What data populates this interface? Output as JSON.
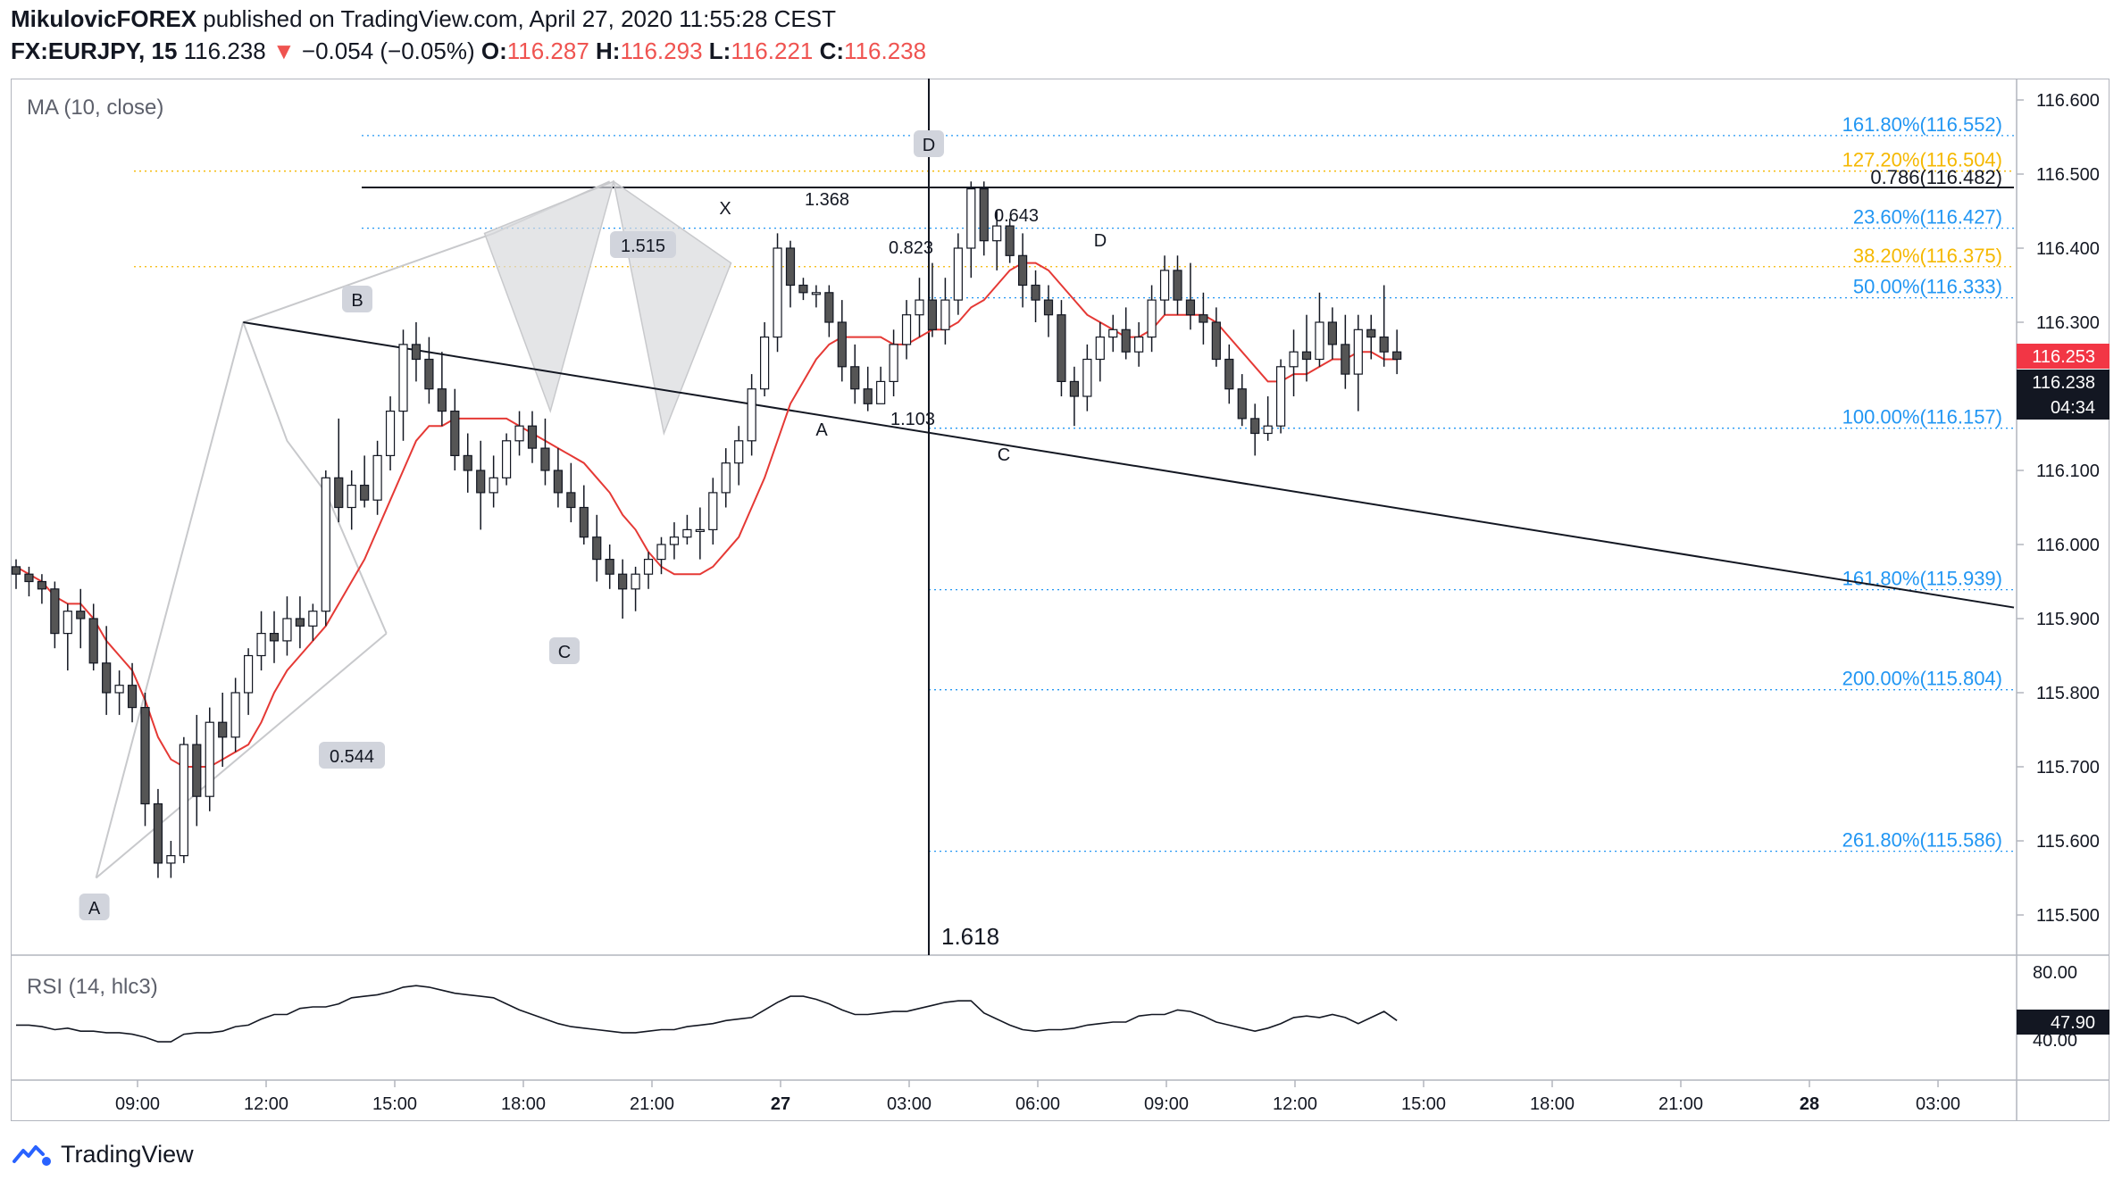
{
  "header": {
    "author": "MikulovicFOREX",
    "published": "published on TradingView.com, April 27, 2020 11:55:28 CEST",
    "symbol": "FX:EURJPY, 15",
    "last": "116.238",
    "arrow": "▼",
    "change": "−0.054 (−0.05%)",
    "o_label": "O:",
    "o_value": "116.287",
    "h_label": "H:",
    "h_value": "116.293",
    "l_label": "L:",
    "l_value": "116.221",
    "c_label": "C:",
    "c_value": "116.238"
  },
  "indicators": {
    "ma_label": "MA (10, close)",
    "rsi_label": "RSI (14, hlc3)",
    "rsi_value": "47.90",
    "rsi_levels": [
      "80.00",
      "40.00"
    ]
  },
  "footer": {
    "brand": "TradingView"
  },
  "colors": {
    "up": "#ffffff",
    "down": "#555555",
    "ma": "#e53935",
    "fib_blue": "#2196f3",
    "fib_orange": "#f5b800",
    "badge_red": "#f23645",
    "badge_black": "#131722",
    "pattern_fill": "#d9dadd"
  },
  "chart_data": {
    "type": "candlestick",
    "timeframe": "15",
    "ylim": [
      115.45,
      116.63
    ],
    "y_ticks": [
      "116.600",
      "116.500",
      "116.400",
      "116.300",
      "116.200",
      "116.100",
      "116.000",
      "115.900",
      "115.800",
      "115.700",
      "115.600",
      "115.500"
    ],
    "x_ticks": [
      "09:00",
      "12:00",
      "15:00",
      "18:00",
      "21:00",
      "27",
      "03:00",
      "06:00",
      "09:00",
      "12:00",
      "15:00",
      "18:00",
      "21:00",
      "28",
      "03:00"
    ],
    "price_badges": {
      "last": "116.253",
      "close": "116.238",
      "timer": "04:34"
    },
    "candles": [
      [
        115.97,
        115.98,
        115.94,
        115.96
      ],
      [
        115.96,
        115.97,
        115.93,
        115.95
      ],
      [
        115.95,
        115.96,
        115.92,
        115.94
      ],
      [
        115.94,
        115.95,
        115.86,
        115.88
      ],
      [
        115.88,
        115.92,
        115.83,
        115.91
      ],
      [
        115.91,
        115.94,
        115.86,
        115.9
      ],
      [
        115.9,
        115.92,
        115.83,
        115.84
      ],
      [
        115.84,
        115.89,
        115.77,
        115.8
      ],
      [
        115.8,
        115.83,
        115.77,
        115.81
      ],
      [
        115.81,
        115.84,
        115.76,
        115.78
      ],
      [
        115.78,
        115.8,
        115.62,
        115.65
      ],
      [
        115.65,
        115.67,
        115.55,
        115.57
      ],
      [
        115.57,
        115.6,
        115.55,
        115.58
      ],
      [
        115.58,
        115.74,
        115.57,
        115.73
      ],
      [
        115.73,
        115.77,
        115.62,
        115.66
      ],
      [
        115.66,
        115.78,
        115.64,
        115.76
      ],
      [
        115.76,
        115.8,
        115.7,
        115.74
      ],
      [
        115.74,
        115.82,
        115.72,
        115.8
      ],
      [
        115.8,
        115.86,
        115.77,
        115.85
      ],
      [
        115.85,
        115.91,
        115.83,
        115.88
      ],
      [
        115.88,
        115.91,
        115.84,
        115.87
      ],
      [
        115.87,
        115.93,
        115.85,
        115.9
      ],
      [
        115.9,
        115.93,
        115.86,
        115.89
      ],
      [
        115.89,
        115.92,
        115.87,
        115.91
      ],
      [
        115.91,
        116.1,
        115.89,
        116.09
      ],
      [
        116.09,
        116.17,
        116.03,
        116.05
      ],
      [
        116.05,
        116.1,
        116.02,
        116.08
      ],
      [
        116.08,
        116.12,
        116.05,
        116.06
      ],
      [
        116.06,
        116.14,
        116.04,
        116.12
      ],
      [
        116.12,
        116.2,
        116.1,
        116.18
      ],
      [
        116.18,
        116.29,
        116.14,
        116.27
      ],
      [
        116.27,
        116.3,
        116.22,
        116.25
      ],
      [
        116.25,
        116.28,
        116.19,
        116.21
      ],
      [
        116.21,
        116.26,
        116.16,
        116.18
      ],
      [
        116.18,
        116.21,
        116.1,
        116.12
      ],
      [
        116.12,
        116.15,
        116.07,
        116.1
      ],
      [
        116.1,
        116.14,
        116.02,
        116.07
      ],
      [
        116.07,
        116.12,
        116.05,
        116.09
      ],
      [
        116.09,
        116.15,
        116.08,
        116.14
      ],
      [
        116.14,
        116.18,
        116.12,
        116.16
      ],
      [
        116.16,
        116.18,
        116.11,
        116.13
      ],
      [
        116.13,
        116.17,
        116.08,
        116.1
      ],
      [
        116.1,
        116.13,
        116.05,
        116.07
      ],
      [
        116.07,
        116.11,
        116.03,
        116.05
      ],
      [
        116.05,
        116.08,
        116.0,
        116.01
      ],
      [
        116.01,
        116.04,
        115.95,
        115.98
      ],
      [
        115.98,
        116.0,
        115.94,
        115.96
      ],
      [
        115.96,
        115.98,
        115.9,
        115.94
      ],
      [
        115.94,
        115.97,
        115.91,
        115.96
      ],
      [
        115.96,
        115.99,
        115.94,
        115.98
      ],
      [
        115.98,
        116.01,
        115.96,
        116.0
      ],
      [
        116.0,
        116.03,
        115.98,
        116.01
      ],
      [
        116.01,
        116.04,
        116.0,
        116.02
      ],
      [
        116.02,
        116.05,
        115.98,
        116.02
      ],
      [
        116.02,
        116.09,
        116.0,
        116.07
      ],
      [
        116.07,
        116.13,
        116.05,
        116.11
      ],
      [
        116.11,
        116.16,
        116.08,
        116.14
      ],
      [
        116.14,
        116.23,
        116.12,
        116.21
      ],
      [
        116.21,
        116.3,
        116.2,
        116.28
      ],
      [
        116.28,
        116.42,
        116.26,
        116.4
      ],
      [
        116.4,
        116.41,
        116.32,
        116.35
      ],
      [
        116.35,
        116.36,
        116.33,
        116.34
      ],
      [
        116.34,
        116.35,
        116.32,
        116.34
      ],
      [
        116.34,
        116.35,
        116.28,
        116.3
      ],
      [
        116.3,
        116.33,
        116.22,
        116.24
      ],
      [
        116.24,
        116.27,
        116.19,
        116.21
      ],
      [
        116.21,
        116.24,
        116.18,
        116.19
      ],
      [
        116.19,
        116.24,
        116.19,
        116.22
      ],
      [
        116.22,
        116.29,
        116.2,
        116.27
      ],
      [
        116.27,
        116.33,
        116.25,
        116.31
      ],
      [
        116.31,
        116.36,
        116.28,
        116.33
      ],
      [
        116.33,
        116.38,
        116.28,
        116.29
      ],
      [
        116.29,
        116.36,
        116.27,
        116.33
      ],
      [
        116.33,
        116.42,
        116.31,
        116.4
      ],
      [
        116.4,
        116.49,
        116.36,
        116.48
      ],
      [
        116.48,
        116.49,
        116.39,
        116.41
      ],
      [
        116.41,
        116.45,
        116.37,
        116.43
      ],
      [
        116.43,
        116.44,
        116.38,
        116.39
      ],
      [
        116.39,
        116.42,
        116.32,
        116.35
      ],
      [
        116.35,
        116.37,
        116.3,
        116.33
      ],
      [
        116.33,
        116.35,
        116.28,
        116.31
      ],
      [
        116.31,
        116.33,
        116.2,
        116.22
      ],
      [
        116.22,
        116.24,
        116.16,
        116.2
      ],
      [
        116.2,
        116.27,
        116.18,
        116.25
      ],
      [
        116.25,
        116.3,
        116.22,
        116.28
      ],
      [
        116.28,
        116.31,
        116.26,
        116.29
      ],
      [
        116.29,
        116.32,
        116.25,
        116.26
      ],
      [
        116.26,
        116.3,
        116.24,
        116.28
      ],
      [
        116.28,
        116.35,
        116.26,
        116.33
      ],
      [
        116.33,
        116.39,
        116.31,
        116.37
      ],
      [
        116.37,
        116.39,
        116.31,
        116.33
      ],
      [
        116.33,
        116.38,
        116.29,
        116.31
      ],
      [
        116.31,
        116.34,
        116.27,
        116.3
      ],
      [
        116.3,
        116.32,
        116.24,
        116.25
      ],
      [
        116.25,
        116.27,
        116.19,
        116.21
      ],
      [
        116.21,
        116.23,
        116.16,
        116.17
      ],
      [
        116.17,
        116.19,
        116.12,
        116.15
      ],
      [
        116.15,
        116.2,
        116.14,
        116.16
      ],
      [
        116.16,
        116.25,
        116.15,
        116.24
      ],
      [
        116.24,
        116.29,
        116.2,
        116.26
      ],
      [
        116.26,
        116.31,
        116.22,
        116.25
      ],
      [
        116.25,
        116.34,
        116.24,
        116.3
      ],
      [
        116.3,
        116.32,
        116.25,
        116.27
      ],
      [
        116.27,
        116.31,
        116.21,
        116.23
      ],
      [
        116.23,
        116.31,
        116.18,
        116.29
      ],
      [
        116.29,
        116.31,
        116.25,
        116.28
      ],
      [
        116.28,
        116.35,
        116.24,
        116.26
      ],
      [
        116.26,
        116.29,
        116.23,
        116.25
      ]
    ],
    "ma10": [
      115.97,
      115.96,
      115.95,
      115.93,
      115.92,
      115.92,
      115.9,
      115.87,
      115.85,
      115.83,
      115.79,
      115.74,
      115.71,
      115.7,
      115.7,
      115.7,
      115.71,
      115.72,
      115.73,
      115.76,
      115.8,
      115.83,
      115.85,
      115.87,
      115.89,
      115.92,
      115.95,
      115.98,
      116.02,
      116.06,
      116.1,
      116.14,
      116.16,
      116.16,
      116.17,
      116.17,
      116.17,
      116.17,
      116.17,
      116.16,
      116.15,
      116.14,
      116.13,
      116.12,
      116.11,
      116.09,
      116.07,
      116.04,
      116.02,
      115.99,
      115.97,
      115.96,
      115.96,
      115.96,
      115.97,
      115.99,
      116.01,
      116.05,
      116.09,
      116.14,
      116.19,
      116.22,
      116.25,
      116.27,
      116.28,
      116.28,
      116.28,
      116.28,
      116.27,
      116.27,
      116.28,
      116.29,
      116.29,
      116.3,
      116.32,
      116.33,
      116.35,
      116.37,
      116.38,
      116.38,
      116.37,
      116.35,
      116.33,
      116.31,
      116.3,
      116.29,
      116.28,
      116.28,
      116.29,
      116.31,
      116.31,
      116.31,
      116.31,
      116.3,
      116.28,
      116.26,
      116.24,
      116.22,
      116.22,
      116.23,
      116.23,
      116.24,
      116.25,
      116.25,
      116.26,
      116.26,
      116.25,
      116.25
    ],
    "rsi": [
      48,
      48,
      47,
      45,
      46,
      44,
      44,
      43,
      43,
      42,
      40,
      37,
      37,
      42,
      43,
      43,
      44,
      47,
      48,
      52,
      55,
      55,
      59,
      60,
      60,
      62,
      66,
      67,
      68,
      70,
      73,
      74,
      73,
      71,
      69,
      68,
      67,
      66,
      62,
      58,
      55,
      52,
      49,
      47,
      46,
      45,
      44,
      43,
      43,
      44,
      45,
      45,
      47,
      48,
      49,
      51,
      52,
      53,
      58,
      63,
      67,
      67,
      65,
      62,
      58,
      55,
      55,
      56,
      57,
      57,
      59,
      61,
      63,
      64,
      64,
      56,
      52,
      48,
      45,
      44,
      45,
      45,
      46,
      48,
      49,
      50,
      50,
      54,
      55,
      55,
      58,
      57,
      54,
      50,
      48,
      46,
      44,
      46,
      49,
      53,
      54,
      53,
      55,
      53,
      49,
      53,
      57,
      51
    ],
    "fib_levels": [
      {
        "label": "161.80%(116.552)",
        "price": 116.552,
        "color": "blue"
      },
      {
        "label": "127.20%(116.504)",
        "price": 116.504,
        "color": "orange"
      },
      {
        "label": "23.60%(116.427)",
        "price": 116.427,
        "color": "blue"
      },
      {
        "label": "38.20%(116.375)",
        "price": 116.375,
        "color": "orange"
      },
      {
        "label": "50.00%(116.333)",
        "price": 116.333,
        "color": "blue"
      },
      {
        "label": "100.00%(116.157)",
        "price": 116.157,
        "color": "blue"
      },
      {
        "label": "161.80%(115.939)",
        "price": 115.939,
        "color": "blue"
      },
      {
        "label": "200.00%(115.804)",
        "price": 115.804,
        "color": "blue"
      },
      {
        "label": "261.80%(115.586)",
        "price": 115.586,
        "color": "blue"
      }
    ],
    "annotations": {
      "level_0786": "0.786(116.482)",
      "abcd_left": {
        "A": "A",
        "B": "B",
        "C": "C",
        "D": "D",
        "ratio_ab": "0.544",
        "ratio_bc": "1.515"
      },
      "xabcd": {
        "X": "X",
        "A": "A",
        "C": "C",
        "D": "D",
        "xa_ratio": "1.368",
        "ab_ratio": "0.823",
        "bc_ratio": "1.103",
        "cd_ratio": "0.643"
      },
      "vertical_line_label": "1.618"
    }
  }
}
